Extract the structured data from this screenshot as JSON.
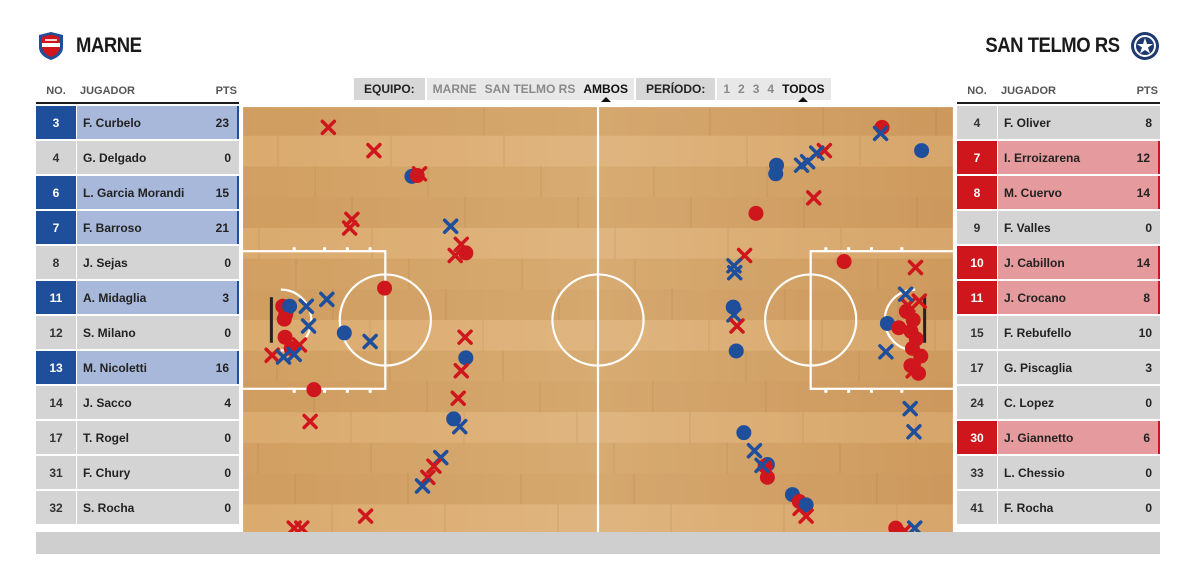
{
  "home": {
    "name": "MARNE",
    "logo_icon": "shield-crest-icon",
    "color": "#1f4e9b",
    "columns": {
      "no": "NO.",
      "player": "JUGADOR",
      "pts": "PTS"
    },
    "players": [
      {
        "no": "3",
        "name": "F. Curbelo",
        "pts": "23",
        "on": true
      },
      {
        "no": "4",
        "name": "G. Delgado",
        "pts": "0",
        "on": false
      },
      {
        "no": "6",
        "name": "L. Garcia Morandi",
        "pts": "15",
        "on": true
      },
      {
        "no": "7",
        "name": "F. Barroso",
        "pts": "21",
        "on": true
      },
      {
        "no": "8",
        "name": "J. Sejas",
        "pts": "0",
        "on": false
      },
      {
        "no": "11",
        "name": "A. Midaglia",
        "pts": "3",
        "on": true
      },
      {
        "no": "12",
        "name": "S. Milano",
        "pts": "0",
        "on": false
      },
      {
        "no": "13",
        "name": "M. Nicoletti",
        "pts": "16",
        "on": true
      },
      {
        "no": "14",
        "name": "J. Sacco",
        "pts": "4",
        "on": false
      },
      {
        "no": "17",
        "name": "T. Rogel",
        "pts": "0",
        "on": false
      },
      {
        "no": "31",
        "name": "F. Chury",
        "pts": "0",
        "on": false
      },
      {
        "no": "32",
        "name": "S. Rocha",
        "pts": "0",
        "on": false
      }
    ]
  },
  "away": {
    "name": "SAN TELMO RS",
    "logo_icon": "round-crest-icon",
    "color": "#d0161d",
    "columns": {
      "no": "NO.",
      "player": "JUGADOR",
      "pts": "PTS"
    },
    "players": [
      {
        "no": "4",
        "name": "F. Oliver",
        "pts": "8",
        "on": false
      },
      {
        "no": "7",
        "name": "I. Erroizarena",
        "pts": "12",
        "on": true
      },
      {
        "no": "8",
        "name": "M. Cuervo",
        "pts": "14",
        "on": true
      },
      {
        "no": "9",
        "name": "F. Valles",
        "pts": "0",
        "on": false
      },
      {
        "no": "10",
        "name": "J. Cabillon",
        "pts": "14",
        "on": true
      },
      {
        "no": "11",
        "name": "J. Crocano",
        "pts": "8",
        "on": true
      },
      {
        "no": "15",
        "name": "F. Rebufello",
        "pts": "10",
        "on": false
      },
      {
        "no": "17",
        "name": "G. Piscaglia",
        "pts": "3",
        "on": false
      },
      {
        "no": "24",
        "name": "C. Lopez",
        "pts": "0",
        "on": false
      },
      {
        "no": "30",
        "name": "J. Giannetto",
        "pts": "6",
        "on": true
      },
      {
        "no": "33",
        "name": "L. Chessio",
        "pts": "0",
        "on": false
      },
      {
        "no": "41",
        "name": "F. Rocha",
        "pts": "0",
        "on": false
      }
    ]
  },
  "filters": {
    "team_label": "EQUIPO:",
    "team_options": [
      {
        "label": "MARNE",
        "active": false
      },
      {
        "label": "SAN TELMO RS",
        "active": false
      },
      {
        "label": "AMBOS",
        "active": true
      }
    ],
    "period_label": "PERÍODO:",
    "period_options": [
      {
        "label": "1",
        "active": false
      },
      {
        "label": "2",
        "active": false
      },
      {
        "label": "3",
        "active": false
      },
      {
        "label": "4",
        "active": false
      },
      {
        "label": "TODOS",
        "active": true
      }
    ]
  },
  "shot_chart": {
    "legend": {
      "made": "circle",
      "missed": "x"
    },
    "colors": {
      "home": "#1f4e9b",
      "away": "#d0161d",
      "floor": "#d9a86a"
    },
    "court_length_ft": 94,
    "court_width_ft": 50,
    "shots": [
      {
        "team": "away",
        "made": false,
        "x": 11.5,
        "y": 2.6
      },
      {
        "team": "away",
        "made": false,
        "x": 17.5,
        "y": 5.3
      },
      {
        "team": "home",
        "made": true,
        "x": 22.5,
        "y": 8.3
      },
      {
        "team": "away",
        "made": true,
        "x": 23.2,
        "y": 8.2
      },
      {
        "team": "away",
        "made": false,
        "x": 23.5,
        "y": 8.0
      },
      {
        "team": "away",
        "made": false,
        "x": 14.6,
        "y": 13.3
      },
      {
        "team": "away",
        "made": false,
        "x": 14.3,
        "y": 14.3
      },
      {
        "team": "home",
        "made": false,
        "x": 27.6,
        "y": 14.1
      },
      {
        "team": "away",
        "made": false,
        "x": 29.0,
        "y": 16.2
      },
      {
        "team": "away",
        "made": false,
        "x": 28.2,
        "y": 17.5
      },
      {
        "team": "away",
        "made": true,
        "x": 29.6,
        "y": 17.2
      },
      {
        "team": "away",
        "made": true,
        "x": 18.9,
        "y": 21.3
      },
      {
        "team": "home",
        "made": false,
        "x": 11.3,
        "y": 22.6
      },
      {
        "team": "away",
        "made": true,
        "x": 5.5,
        "y": 23.4
      },
      {
        "team": "away",
        "made": true,
        "x": 5.9,
        "y": 24.3
      },
      {
        "team": "home",
        "made": true,
        "x": 6.4,
        "y": 23.4
      },
      {
        "team": "home",
        "made": false,
        "x": 8.6,
        "y": 23.4
      },
      {
        "team": "away",
        "made": true,
        "x": 5.7,
        "y": 24.9
      },
      {
        "team": "home",
        "made": false,
        "x": 8.9,
        "y": 25.7
      },
      {
        "team": "home",
        "made": true,
        "x": 13.6,
        "y": 26.5
      },
      {
        "team": "home",
        "made": false,
        "x": 17.0,
        "y": 27.5
      },
      {
        "team": "away",
        "made": true,
        "x": 5.8,
        "y": 27.0
      },
      {
        "team": "away",
        "made": true,
        "x": 6.6,
        "y": 28.3
      },
      {
        "team": "away",
        "made": false,
        "x": 7.7,
        "y": 27.9
      },
      {
        "team": "away",
        "made": false,
        "x": 4.1,
        "y": 29.1
      },
      {
        "team": "home",
        "made": false,
        "x": 5.6,
        "y": 29.3
      },
      {
        "team": "home",
        "made": false,
        "x": 7.0,
        "y": 29.0
      },
      {
        "team": "away",
        "made": true,
        "x": 9.6,
        "y": 33.1
      },
      {
        "team": "away",
        "made": false,
        "x": 29.5,
        "y": 27.0
      },
      {
        "team": "home",
        "made": true,
        "x": 29.6,
        "y": 29.4
      },
      {
        "team": "away",
        "made": false,
        "x": 29.0,
        "y": 30.9
      },
      {
        "team": "away",
        "made": false,
        "x": 28.6,
        "y": 34.1
      },
      {
        "team": "home",
        "made": true,
        "x": 28.0,
        "y": 36.5
      },
      {
        "team": "home",
        "made": false,
        "x": 28.8,
        "y": 37.4
      },
      {
        "team": "away",
        "made": false,
        "x": 9.1,
        "y": 36.8
      },
      {
        "team": "home",
        "made": false,
        "x": 26.3,
        "y": 41.0
      },
      {
        "team": "away",
        "made": false,
        "x": 25.4,
        "y": 42.0
      },
      {
        "team": "away",
        "made": false,
        "x": 24.6,
        "y": 43.3
      },
      {
        "team": "home",
        "made": false,
        "x": 23.9,
        "y": 44.3
      },
      {
        "team": "away",
        "made": false,
        "x": 16.4,
        "y": 47.8
      },
      {
        "team": "away",
        "made": false,
        "x": 7.0,
        "y": 49.2
      },
      {
        "team": "away",
        "made": false,
        "x": 8.0,
        "y": 49.2
      },
      {
        "team": "away",
        "made": true,
        "x": 84.4,
        "y": 2.6
      },
      {
        "team": "home",
        "made": false,
        "x": 84.2,
        "y": 3.3
      },
      {
        "team": "home",
        "made": true,
        "x": 89.6,
        "y": 5.3
      },
      {
        "team": "away",
        "made": false,
        "x": 76.8,
        "y": 5.3
      },
      {
        "team": "home",
        "made": false,
        "x": 75.8,
        "y": 5.6
      },
      {
        "team": "home",
        "made": false,
        "x": 74.6,
        "y": 6.6
      },
      {
        "team": "home",
        "made": false,
        "x": 73.8,
        "y": 7.0
      },
      {
        "team": "home",
        "made": true,
        "x": 70.5,
        "y": 7.0
      },
      {
        "team": "home",
        "made": true,
        "x": 70.4,
        "y": 8.0
      },
      {
        "team": "away",
        "made": false,
        "x": 75.4,
        "y": 10.8
      },
      {
        "team": "away",
        "made": true,
        "x": 67.8,
        "y": 12.6
      },
      {
        "team": "away",
        "made": false,
        "x": 66.3,
        "y": 17.5
      },
      {
        "team": "home",
        "made": false,
        "x": 64.9,
        "y": 18.7
      },
      {
        "team": "home",
        "made": false,
        "x": 65.0,
        "y": 19.5
      },
      {
        "team": "away",
        "made": true,
        "x": 79.4,
        "y": 18.2
      },
      {
        "team": "away",
        "made": false,
        "x": 88.8,
        "y": 18.9
      },
      {
        "team": "home",
        "made": true,
        "x": 64.8,
        "y": 23.5
      },
      {
        "team": "home",
        "made": false,
        "x": 64.9,
        "y": 24.4
      },
      {
        "team": "away",
        "made": false,
        "x": 65.3,
        "y": 25.7
      },
      {
        "team": "home",
        "made": true,
        "x": 65.2,
        "y": 28.6
      },
      {
        "team": "home",
        "made": true,
        "x": 85.1,
        "y": 25.4
      },
      {
        "team": "away",
        "made": true,
        "x": 86.6,
        "y": 25.9
      },
      {
        "team": "away",
        "made": true,
        "x": 87.6,
        "y": 24.0
      },
      {
        "team": "away",
        "made": true,
        "x": 88.5,
        "y": 25.0
      },
      {
        "team": "away",
        "made": true,
        "x": 88.2,
        "y": 26.3
      },
      {
        "team": "away",
        "made": true,
        "x": 88.9,
        "y": 27.2
      },
      {
        "team": "away",
        "made": true,
        "x": 88.4,
        "y": 28.3
      },
      {
        "team": "away",
        "made": true,
        "x": 89.5,
        "y": 29.2
      },
      {
        "team": "away",
        "made": true,
        "x": 88.2,
        "y": 30.3
      },
      {
        "team": "away",
        "made": true,
        "x": 89.2,
        "y": 31.2
      },
      {
        "team": "away",
        "made": false,
        "x": 87.8,
        "y": 23.3
      },
      {
        "team": "away",
        "made": false,
        "x": 89.3,
        "y": 22.8
      },
      {
        "team": "away",
        "made": false,
        "x": 88.5,
        "y": 30.9
      },
      {
        "team": "home",
        "made": false,
        "x": 87.5,
        "y": 22.0
      },
      {
        "team": "home",
        "made": false,
        "x": 84.9,
        "y": 28.7
      },
      {
        "team": "home",
        "made": false,
        "x": 88.1,
        "y": 35.3
      },
      {
        "team": "home",
        "made": false,
        "x": 88.6,
        "y": 38.0
      },
      {
        "team": "home",
        "made": true,
        "x": 66.2,
        "y": 38.1
      },
      {
        "team": "home",
        "made": false,
        "x": 67.6,
        "y": 40.2
      },
      {
        "team": "home",
        "made": true,
        "x": 69.3,
        "y": 41.8
      },
      {
        "team": "away",
        "made": true,
        "x": 69.0,
        "y": 42.0
      },
      {
        "team": "away",
        "made": true,
        "x": 69.3,
        "y": 43.3
      },
      {
        "team": "home",
        "made": false,
        "x": 68.6,
        "y": 41.9
      },
      {
        "team": "home",
        "made": true,
        "x": 72.6,
        "y": 45.3
      },
      {
        "team": "away",
        "made": true,
        "x": 73.5,
        "y": 46.1
      },
      {
        "team": "away",
        "made": false,
        "x": 73.6,
        "y": 46.9
      },
      {
        "team": "home",
        "made": true,
        "x": 74.4,
        "y": 46.5
      },
      {
        "team": "away",
        "made": false,
        "x": 74.4,
        "y": 47.8
      },
      {
        "team": "away",
        "made": true,
        "x": 86.2,
        "y": 49.2
      },
      {
        "team": "away",
        "made": false,
        "x": 87.4,
        "y": 49.5
      },
      {
        "team": "home",
        "made": false,
        "x": 88.7,
        "y": 49.2
      }
    ]
  }
}
